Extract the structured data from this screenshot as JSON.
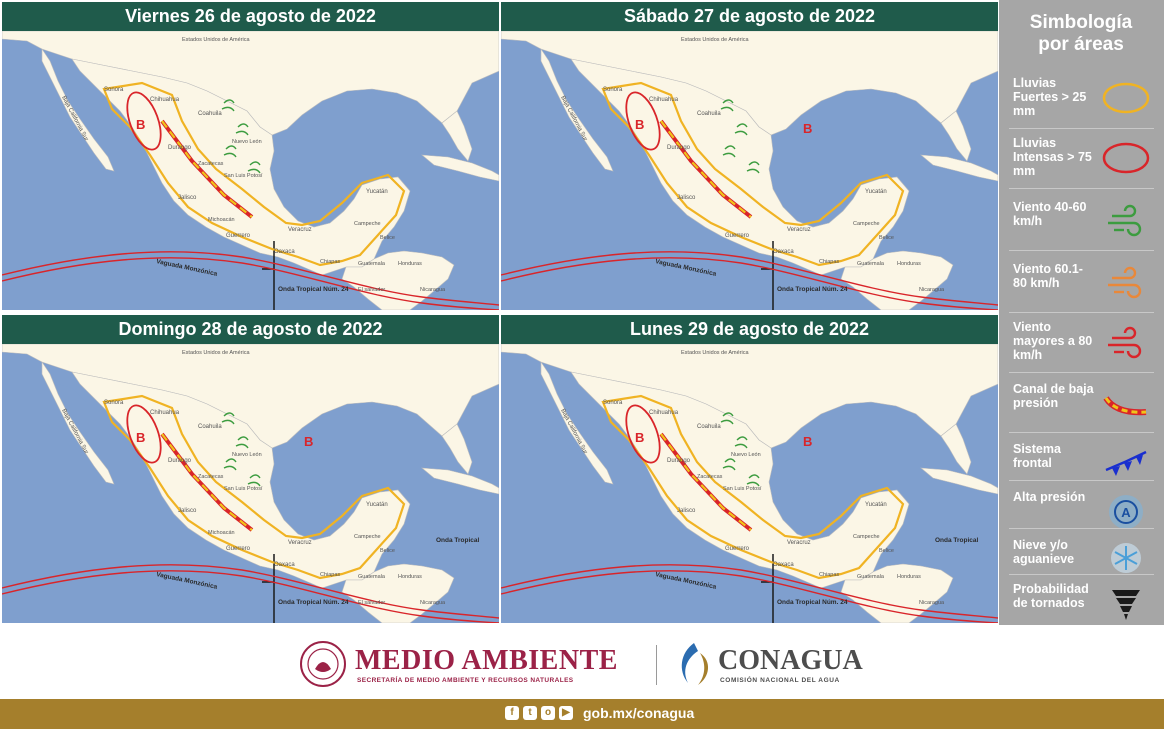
{
  "panels": [
    {
      "title": "Viernes 26 de agosto de 2022",
      "labels": {
        "usa": "Estados Unidos de América",
        "baja": "Baja California Sur",
        "sonora": "Sonora",
        "chihuahua": "Chihuahua",
        "coahuila": "Coahuila",
        "nuevo_leon": "Nuevo León",
        "durango": "Durango",
        "zacatecas": "Zacatecas",
        "slp": "San Luis Potosí",
        "jalisco": "Jalisco",
        "michoacan": "Michoacán",
        "guerrero": "Guerrero",
        "oaxaca": "Oaxaca",
        "veracruz": "Veracruz",
        "yucatan": "Yucatán",
        "campeche": "Campeche",
        "chiapas": "Chiapas",
        "belice": "Belice",
        "guatemala": "Guatemala",
        "honduras": "Honduras",
        "nicaragua": "Nicaragua",
        "elsalvador": "El salvador",
        "vaguada": "Vaguada Monzónica",
        "onda": "Onda Tropical Núm. 24",
        "b1": "B"
      }
    },
    {
      "title": "Sábado 27 de agosto de 2022",
      "labels": {
        "usa": "Estados Unidos de América",
        "baja": "Baja California Sur",
        "sonora": "Sonora",
        "chihuahua": "Chihuahua",
        "coahuila": "Coahuila",
        "durango": "Durango",
        "jalisco": "Jalisco",
        "guerrero": "Guerrero",
        "oaxaca": "Oaxaca",
        "veracruz": "Veracruz",
        "yucatan": "Yucatán",
        "campeche": "Campeche",
        "chiapas": "Chiapas",
        "belice": "Belice",
        "guatemala": "Guatemala",
        "honduras": "Honduras",
        "nicaragua": "Nicaragua",
        "vaguada": "Vaguada Monzónica",
        "onda": "Onda Tropical Núm. 24",
        "b1": "B",
        "b2": "B"
      }
    },
    {
      "title": "Domingo 28 de agosto de 2022",
      "labels": {
        "usa": "Estados Unidos de América",
        "baja": "Baja California Sur",
        "sonora": "Sonora",
        "chihuahua": "Chihuahua",
        "coahuila": "Coahuila",
        "nuevo_leon": "Nuevo León",
        "durango": "Durango",
        "zacatecas": "Zacatecas",
        "slp": "San Luis Potosí",
        "jalisco": "Jalisco",
        "michoacan": "Michoacán",
        "guerrero": "Guerrero",
        "oaxaca": "Oaxaca",
        "veracruz": "Veracruz",
        "yucatan": "Yucatán",
        "campeche": "Campeche",
        "chiapas": "Chiapas",
        "belice": "Belice",
        "guatemala": "Guatemala",
        "honduras": "Honduras",
        "nicaragua": "Nicaragua",
        "elsalvador": "El salvador",
        "vaguada": "Vaguada Monzónica",
        "onda": "Onda Tropical Núm. 24",
        "onda2": "Onda Tropical",
        "b1": "B",
        "b2": "B"
      }
    },
    {
      "title": "Lunes 29 de agosto de 2022",
      "labels": {
        "usa": "Estados Unidos de América",
        "baja": "Baja California Sur",
        "sonora": "Sonora",
        "chihuahua": "Chihuahua",
        "coahuila": "Coahuila",
        "nuevo_leon": "Nuevo León",
        "durango": "Durango",
        "zacatecas": "Zacatecas",
        "slp": "San Luis Potosí",
        "jalisco": "Jalisco",
        "guerrero": "Guerrero",
        "oaxaca": "Oaxaca",
        "veracruz": "Veracruz",
        "yucatan": "Yucatán",
        "campeche": "Campeche",
        "chiapas": "Chiapas",
        "belice": "Belice",
        "guatemala": "Guatemala",
        "honduras": "Honduras",
        "nicaragua": "Nicaragua",
        "vaguada": "Vaguada Monzónica",
        "onda": "Onda Tropical Núm. 24",
        "onda2": "Onda Tropical",
        "b1": "B",
        "b2": "B"
      }
    }
  ],
  "legend": {
    "title": "Simbología por áreas",
    "items": [
      {
        "label": "Lluvias Fuertes > 25 mm",
        "icon": "yellow-ellipse"
      },
      {
        "label": "Lluvias Intensas > 75 mm",
        "icon": "red-ellipse"
      },
      {
        "label": "Viento 40-60 km/h",
        "icon": "green-wind"
      },
      {
        "label": "Viento 60.1-80 km/h",
        "icon": "orange-wind"
      },
      {
        "label": "Viento mayores a 80 km/h",
        "icon": "red-wind"
      },
      {
        "label": "Canal de baja presión",
        "icon": "trough-line"
      },
      {
        "label": "Sistema frontal",
        "icon": "cold-front"
      },
      {
        "label": "Alta presión",
        "icon": "high-pressure"
      },
      {
        "label": "Nieve y/o aguanieve",
        "icon": "snowflake"
      },
      {
        "label": "Probabilidad de tornados",
        "icon": "tornado"
      }
    ]
  },
  "footer": {
    "medio_ambiente": "MEDIO AMBIENTE",
    "semarnat": "SECRETARÍA DE MEDIO AMBIENTE Y RECURSOS NATURALES",
    "conagua": "CONAGUA",
    "conagua_sub": "COMISIÓN NACIONAL DEL AGUA",
    "url": "gob.mx/conagua"
  },
  "colors": {
    "ocean": "#7f9fce",
    "land": "#fbf6e6",
    "header": "#1f5b4b",
    "yellow": "#f0b323",
    "red": "#d9252a",
    "wind_green": "#3c9c3f",
    "front_blue": "#1a2fcf",
    "legend_bg": "#a6a6a6",
    "gold_bar": "#a57f2c",
    "guinda": "#9b2247"
  }
}
